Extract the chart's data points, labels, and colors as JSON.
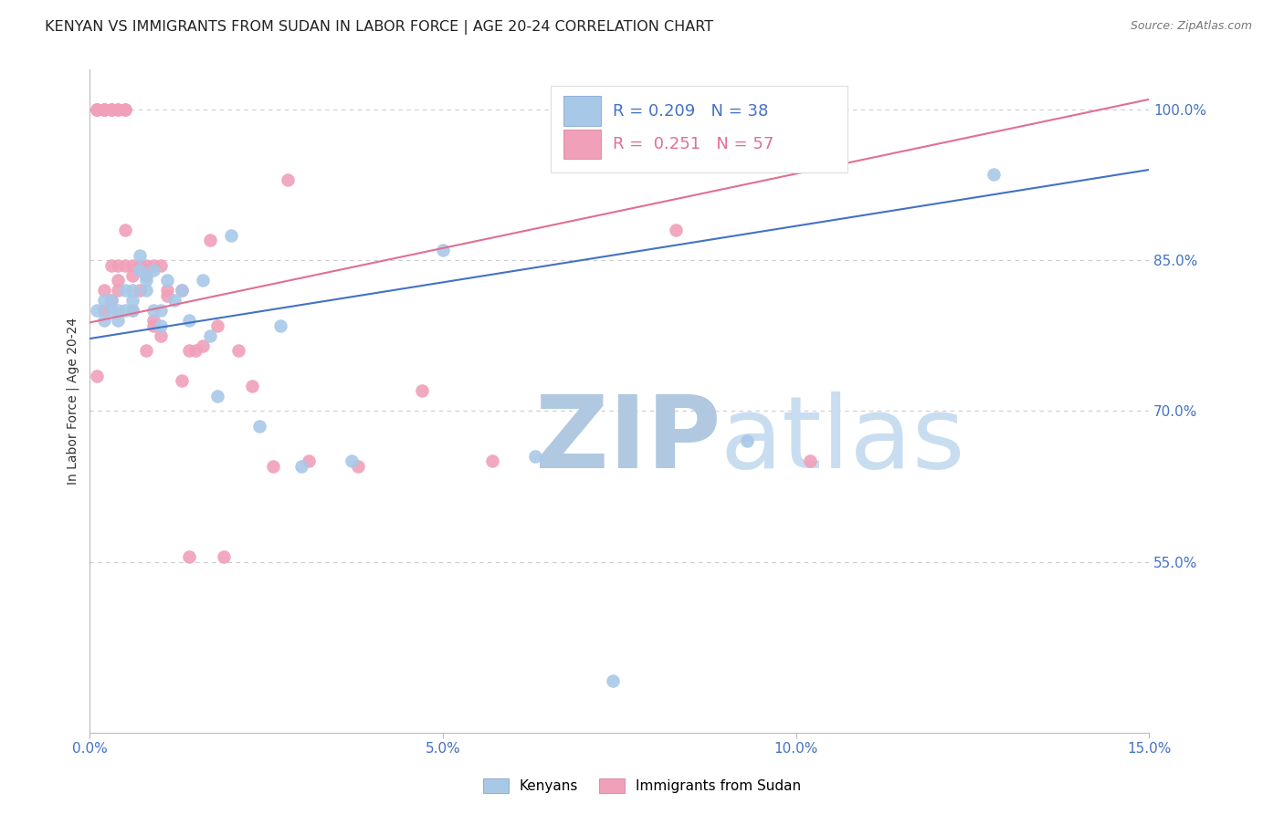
{
  "title": "KENYAN VS IMMIGRANTS FROM SUDAN IN LABOR FORCE | AGE 20-24 CORRELATION CHART",
  "source": "Source: ZipAtlas.com",
  "ylabel_text": "In Labor Force | Age 20-24",
  "xlim": [
    0.0,
    0.15
  ],
  "ylim": [
    0.38,
    1.04
  ],
  "xticks": [
    0.0,
    0.05,
    0.1,
    0.15
  ],
  "xticklabels": [
    "0.0%",
    "5.0%",
    "10.0%",
    "15.0%"
  ],
  "yticks": [
    0.55,
    0.7,
    0.85,
    1.0
  ],
  "yticklabels": [
    "55.0%",
    "70.0%",
    "85.0%",
    "100.0%"
  ],
  "color_blue": "#a8c8e8",
  "color_pink": "#f0a0b8",
  "line_blue": "#4472c4",
  "line_pink": "#e07090",
  "R_blue": 0.209,
  "N_blue": 38,
  "R_pink": 0.251,
  "N_pink": 57,
  "watermark_ZIP": "ZIP",
  "watermark_atlas": "atlas",
  "blue_x": [
    0.001,
    0.002,
    0.002,
    0.003,
    0.003,
    0.004,
    0.004,
    0.005,
    0.005,
    0.006,
    0.006,
    0.006,
    0.007,
    0.007,
    0.008,
    0.008,
    0.008,
    0.009,
    0.009,
    0.01,
    0.01,
    0.011,
    0.012,
    0.013,
    0.014,
    0.016,
    0.017,
    0.018,
    0.02,
    0.024,
    0.027,
    0.03,
    0.037,
    0.05,
    0.063,
    0.074,
    0.093,
    0.128
  ],
  "blue_y": [
    0.8,
    0.79,
    0.81,
    0.8,
    0.81,
    0.8,
    0.79,
    0.8,
    0.82,
    0.8,
    0.81,
    0.82,
    0.84,
    0.855,
    0.835,
    0.83,
    0.82,
    0.84,
    0.8,
    0.8,
    0.785,
    0.83,
    0.81,
    0.82,
    0.79,
    0.83,
    0.775,
    0.715,
    0.875,
    0.685,
    0.785,
    0.645,
    0.65,
    0.86,
    0.655,
    0.432,
    0.67,
    0.935
  ],
  "pink_x": [
    0.001,
    0.001,
    0.001,
    0.001,
    0.002,
    0.002,
    0.002,
    0.002,
    0.002,
    0.003,
    0.003,
    0.003,
    0.003,
    0.003,
    0.004,
    0.004,
    0.004,
    0.004,
    0.004,
    0.005,
    0.005,
    0.005,
    0.005,
    0.006,
    0.006,
    0.006,
    0.007,
    0.007,
    0.008,
    0.008,
    0.008,
    0.009,
    0.009,
    0.009,
    0.01,
    0.01,
    0.011,
    0.011,
    0.013,
    0.013,
    0.014,
    0.014,
    0.015,
    0.016,
    0.017,
    0.018,
    0.019,
    0.021,
    0.023,
    0.026,
    0.028,
    0.031,
    0.038,
    0.047,
    0.057,
    0.083,
    0.102
  ],
  "pink_y": [
    1.0,
    1.0,
    1.0,
    0.735,
    1.0,
    1.0,
    1.0,
    0.8,
    0.82,
    1.0,
    1.0,
    1.0,
    0.845,
    0.81,
    1.0,
    1.0,
    0.845,
    0.83,
    0.82,
    1.0,
    1.0,
    0.88,
    0.845,
    0.845,
    0.835,
    0.8,
    0.845,
    0.82,
    0.835,
    0.845,
    0.76,
    0.845,
    0.79,
    0.785,
    0.845,
    0.775,
    0.82,
    0.815,
    0.82,
    0.73,
    0.76,
    0.555,
    0.76,
    0.765,
    0.87,
    0.785,
    0.555,
    0.76,
    0.725,
    0.645,
    0.93,
    0.65,
    0.645,
    0.72,
    0.65,
    0.88,
    0.65
  ],
  "blue_line_x0": 0.0,
  "blue_line_x1": 0.15,
  "blue_line_y0": 0.772,
  "blue_line_y1": 0.94,
  "pink_line_x0": 0.0,
  "pink_line_x1": 0.15,
  "pink_line_y0": 0.788,
  "pink_line_y1": 1.01,
  "bg_color": "#ffffff",
  "grid_color": "#cccccc",
  "tick_color": "#4472c4",
  "title_color": "#222222",
  "title_fontsize": 11.5,
  "axis_label_fontsize": 10,
  "tick_fontsize": 11,
  "source_fontsize": 9,
  "watermark_color_ZIP": "#b0c8e0",
  "watermark_color_atlas": "#c8ddf0",
  "watermark_fontsize": 80
}
